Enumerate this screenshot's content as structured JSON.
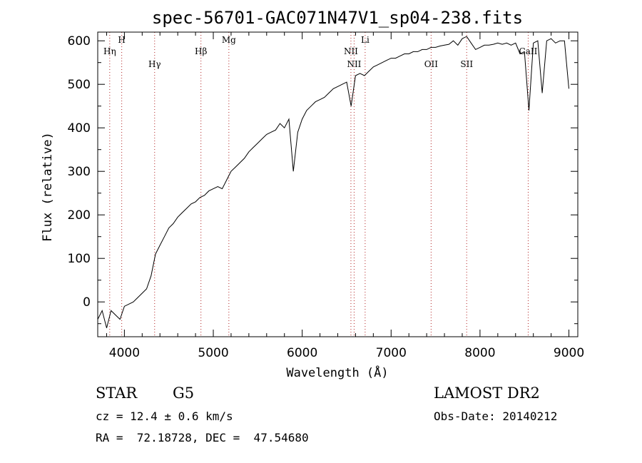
{
  "chart_data": {
    "type": "line",
    "title": "spec-56701-GAC071N47V1_sp04-238.fits",
    "xlabel": "Wavelength (Å)",
    "ylabel": "Flux (relative)",
    "xlim": [
      3700,
      9100
    ],
    "ylim": [
      -80,
      620
    ],
    "xticks": [
      4000,
      5000,
      6000,
      7000,
      8000,
      9000
    ],
    "yticks": [
      0,
      100,
      200,
      300,
      400,
      500,
      600
    ],
    "grid": false,
    "series": [
      {
        "x": [
          3700,
          3750,
          3800,
          3850,
          3900,
          3950,
          4000,
          4050,
          4100,
          4150,
          4200,
          4250,
          4300,
          4350,
          4400,
          4450,
          4500,
          4550,
          4600,
          4650,
          4700,
          4750,
          4800,
          4850,
          4900,
          4950,
          5000,
          5050,
          5100,
          5150,
          5200,
          5250,
          5300,
          5350,
          5400,
          5450,
          5500,
          5550,
          5600,
          5650,
          5700,
          5750,
          5800,
          5850,
          5900,
          5950,
          6000,
          6050,
          6100,
          6150,
          6200,
          6250,
          6300,
          6350,
          6400,
          6450,
          6500,
          6550,
          6600,
          6650,
          6700,
          6750,
          6800,
          6850,
          6900,
          6950,
          7000,
          7050,
          7100,
          7150,
          7200,
          7250,
          7300,
          7350,
          7400,
          7450,
          7500,
          7550,
          7600,
          7650,
          7700,
          7750,
          7800,
          7850,
          7900,
          7950,
          8000,
          8050,
          8100,
          8150,
          8200,
          8250,
          8300,
          8350,
          8400,
          8450,
          8500,
          8550,
          8600,
          8650,
          8700,
          8750,
          8800,
          8850,
          8900,
          8950,
          9000
        ],
        "y": [
          -40,
          -20,
          -60,
          -20,
          -30,
          -40,
          -10,
          -5,
          0,
          10,
          20,
          30,
          60,
          110,
          130,
          150,
          170,
          180,
          195,
          205,
          215,
          225,
          230,
          240,
          245,
          255,
          260,
          265,
          260,
          280,
          300,
          310,
          320,
          330,
          345,
          355,
          365,
          375,
          385,
          390,
          395,
          410,
          400,
          420,
          300,
          390,
          420,
          440,
          450,
          460,
          465,
          470,
          480,
          490,
          495,
          500,
          505,
          450,
          520,
          525,
          520,
          530,
          540,
          545,
          550,
          555,
          560,
          560,
          565,
          570,
          570,
          575,
          575,
          580,
          580,
          585,
          585,
          588,
          590,
          592,
          600,
          590,
          605,
          610,
          595,
          580,
          585,
          590,
          590,
          592,
          595,
          592,
          595,
          590,
          595,
          570,
          575,
          440,
          595,
          600,
          480,
          600,
          605,
          595,
          600,
          600,
          490
        ]
      }
    ],
    "line_markers": [
      {
        "label": "Hη",
        "x": 3835
      },
      {
        "label": "H",
        "x": 3970
      },
      {
        "label": "Hγ",
        "x": 4340
      },
      {
        "label": "Hβ",
        "x": 4861
      },
      {
        "label": "Mg",
        "x": 5175
      },
      {
        "label": "NII",
        "x": 6548
      },
      {
        "label": "NII",
        "x": 6584
      },
      {
        "label": "Li",
        "x": 6708
      },
      {
        "label": "OII",
        "x": 7450
      },
      {
        "label": "SII",
        "x": 7850
      },
      {
        "label": "CaII",
        "x": 8542
      }
    ]
  },
  "info": {
    "class_label": "STAR",
    "subclass_label": "G5",
    "cz_text": "cz = 12.4 ± 0.6 km/s",
    "radec_text": "RA =  72.18728, DEC =  47.54680",
    "survey_label": "LAMOST DR2",
    "obs_date_text": "Obs-Date: 20140212"
  }
}
